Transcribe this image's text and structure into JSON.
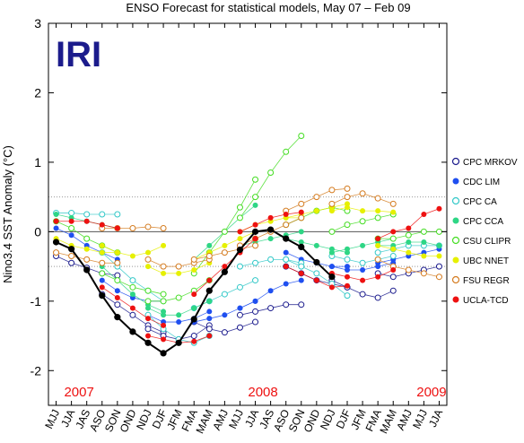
{
  "chart_data": {
    "type": "line",
    "title": "ENSO Forecast for statistical models, May 07 – Feb 09",
    "logo": "IRI",
    "ylabel": "Nino3.4 SST Anomaly (°C)",
    "xlabel": "",
    "ylim": [
      -2.5,
      3
    ],
    "yticks": [
      -2,
      -1,
      0,
      1,
      2,
      3
    ],
    "grid": "dotted lines at +0.5 and -0.5, solid line at 0",
    "legend_position": "right",
    "categories": [
      "MJJ",
      "JJA",
      "JAS",
      "ASO",
      "SON",
      "OND",
      "NDJ",
      "DJF",
      "JFM",
      "FMA",
      "MAM",
      "AMJ",
      "MJJ",
      "JJA",
      "JAS",
      "ASO",
      "SON",
      "OND",
      "NDJ",
      "DJF",
      "JFM",
      "FMA",
      "MAM",
      "AMJ",
      "MJJ",
      "JJA"
    ],
    "year_labels": [
      {
        "text": "2007",
        "at": 1.5
      },
      {
        "text": "2008",
        "at": 13.5
      },
      {
        "text": "2009",
        "at": 24.5
      }
    ],
    "observed": {
      "name": "Observed",
      "color": "#000000",
      "values": [
        -0.15,
        -0.25,
        -0.55,
        -0.92,
        -1.23,
        -1.44,
        -1.6,
        -1.75,
        -1.6,
        -1.26,
        -0.85,
        -0.58,
        -0.26,
        0.0,
        0.03,
        -0.1,
        -0.22,
        -0.44,
        -0.65
      ]
    },
    "series": [
      {
        "name": "CPC MRKOV",
        "color": "#1a1a8c",
        "marker": "open",
        "forecasts": [
          {
            "start": 0,
            "values": [
              -0.35,
              -0.45,
              -0.52,
              -0.6,
              -0.63
            ]
          },
          {
            "start": 3,
            "values": [
              -0.9,
              -1.05,
              -1.2,
              -1.35,
              -1.45
            ]
          },
          {
            "start": 6,
            "values": [
              -1.4,
              -1.5,
              -1.55,
              -1.5,
              -1.35
            ]
          },
          {
            "start": 9,
            "values": [
              -1.3,
              -1.4,
              -1.45,
              -1.38,
              -1.3
            ]
          },
          {
            "start": 12,
            "values": [
              -1.2,
              -1.15,
              -1.1,
              -1.05,
              -1.05
            ]
          },
          {
            "start": 15,
            "values": [
              -0.5,
              -0.6,
              -0.7,
              -0.75,
              -0.8
            ]
          },
          {
            "start": 18,
            "values": [
              -0.7,
              -0.8,
              -0.9,
              -0.95,
              -0.85
            ]
          },
          {
            "start": 21,
            "values": [
              -0.6,
              -0.65,
              -0.6,
              -0.55,
              -0.5
            ]
          }
        ]
      },
      {
        "name": "CDC LIM",
        "color": "#1f4ff0",
        "marker": "filled",
        "forecasts": [
          {
            "start": 0,
            "values": [
              0.05,
              -0.05,
              -0.2,
              -0.3,
              -0.4
            ]
          },
          {
            "start": 3,
            "values": [
              -0.7,
              -0.85,
              -0.95,
              -1.0,
              -1.0
            ]
          },
          {
            "start": 6,
            "values": [
              -1.2,
              -1.3,
              -1.3,
              -1.25,
              -1.15
            ]
          },
          {
            "start": 9,
            "values": [
              -1.3,
              -1.25,
              -1.2,
              -1.1,
              -1.0
            ]
          },
          {
            "start": 12,
            "values": [
              -1.1,
              -1.0,
              -0.85,
              -0.75,
              -0.7
            ]
          },
          {
            "start": 15,
            "values": [
              -0.3,
              -0.4,
              -0.45,
              -0.5,
              -0.5
            ]
          },
          {
            "start": 18,
            "values": [
              -0.5,
              -0.55,
              -0.55,
              -0.5,
              -0.45
            ]
          },
          {
            "start": 21,
            "values": [
              -0.45,
              -0.4,
              -0.35,
              -0.3,
              -0.25
            ]
          }
        ]
      },
      {
        "name": "CPC CA",
        "color": "#33c8c8",
        "marker": "open",
        "forecasts": [
          {
            "start": 0,
            "values": [
              0.27,
              0.27,
              0.25,
              0.25,
              0.25
            ]
          },
          {
            "start": 3,
            "values": [
              -0.3,
              -0.5,
              -0.7,
              -0.85,
              -1.0
            ]
          },
          {
            "start": 6,
            "values": [
              -1.2,
              -1.4,
              -1.55,
              -1.6,
              -1.5
            ]
          },
          {
            "start": 9,
            "values": [
              -1.1,
              -1.0,
              -0.9,
              -0.8,
              -0.7
            ]
          },
          {
            "start": 12,
            "values": [
              -0.5,
              -0.45,
              -0.4,
              -0.4,
              -0.45
            ]
          },
          {
            "start": 15,
            "values": [
              -0.4,
              -0.5,
              -0.6,
              -0.75,
              -0.92
            ]
          },
          {
            "start": 18,
            "values": [
              -0.35,
              -0.4,
              -0.45,
              -0.4,
              -0.35
            ]
          },
          {
            "start": 21,
            "values": [
              -0.3,
              -0.25,
              -0.2,
              -0.2,
              -0.2
            ]
          }
        ]
      },
      {
        "name": "CPC CCA",
        "color": "#2ed685",
        "marker": "filled",
        "forecasts": [
          {
            "start": 0,
            "values": [
              0.25,
              0.2,
              0.15,
              0.1,
              0.05
            ]
          },
          {
            "start": 3,
            "values": [
              -0.5,
              -0.7,
              -0.9,
              -1.05,
              -1.15
            ]
          },
          {
            "start": 6,
            "values": [
              -1.1,
              -1.2,
              -1.2,
              -1.1,
              -1.0
            ]
          },
          {
            "start": 9,
            "values": [
              -0.4,
              -0.2,
              0.0,
              0.2,
              0.38
            ]
          },
          {
            "start": 12,
            "values": [
              -0.2,
              -0.15,
              -0.1,
              -0.05,
              0.0
            ]
          },
          {
            "start": 15,
            "values": [
              -0.1,
              -0.15,
              -0.2,
              -0.25,
              -0.3
            ]
          },
          {
            "start": 18,
            "values": [
              -0.3,
              -0.25,
              -0.2,
              -0.15,
              -0.1
            ]
          },
          {
            "start": 21,
            "values": [
              -0.2,
              -0.2,
              -0.15,
              -0.15,
              -0.2
            ]
          }
        ]
      },
      {
        "name": "CSU CLIPR",
        "color": "#44dd22",
        "marker": "open",
        "forecasts": [
          {
            "start": 0,
            "values": [
              0.15,
              0.05,
              -0.1,
              -0.2,
              -0.3
            ]
          },
          {
            "start": 3,
            "values": [
              -0.6,
              -0.7,
              -0.8,
              -0.85,
              -0.9
            ]
          },
          {
            "start": 6,
            "values": [
              -1.0,
              -1.0,
              -0.95,
              -0.85,
              -0.7
            ]
          },
          {
            "start": 9,
            "values": [
              -0.6,
              -0.3,
              0.0,
              0.35,
              0.75
            ]
          },
          {
            "start": 12,
            "values": [
              0.2,
              0.5,
              0.85,
              1.15,
              1.38
            ]
          },
          {
            "start": 15,
            "values": [
              0.1,
              0.2,
              0.3,
              0.35,
              0.3
            ]
          },
          {
            "start": 18,
            "values": [
              0.0,
              0.1,
              0.15,
              0.2,
              0.25
            ]
          },
          {
            "start": 21,
            "values": [
              -0.1,
              -0.1,
              -0.05,
              0.0,
              0.0
            ]
          }
        ]
      },
      {
        "name": "UBC NNET",
        "color": "#e6f000",
        "marker": "filled",
        "forecasts": [
          {
            "start": 0,
            "values": [
              -0.1,
              -0.2,
              -0.25,
              -0.3,
              -0.3
            ]
          },
          {
            "start": 3,
            "values": [
              -0.2,
              -0.3,
              -0.35,
              -0.3,
              -0.2
            ]
          },
          {
            "start": 6,
            "values": [
              -0.5,
              -0.6,
              -0.6,
              -0.55,
              -0.45
            ]
          },
          {
            "start": 9,
            "values": [
              -0.4,
              -0.3,
              -0.2,
              -0.1,
              0.0
            ]
          },
          {
            "start": 12,
            "values": [
              0.0,
              0.1,
              0.15,
              0.2,
              0.2
            ]
          },
          {
            "start": 15,
            "values": [
              0.2,
              0.25,
              0.3,
              0.35,
              0.4
            ]
          },
          {
            "start": 18,
            "values": [
              0.3,
              0.35,
              0.3,
              0.3,
              0.28
            ]
          },
          {
            "start": 21,
            "values": [
              -0.2,
              -0.25,
              -0.3,
              -0.35,
              -0.35
            ]
          }
        ]
      },
      {
        "name": "FSU REGR",
        "color": "#d47b1f",
        "marker": "open",
        "forecasts": [
          {
            "start": 0,
            "values": [
              -0.3,
              -0.35,
              -0.4,
              -0.45,
              -0.45
            ]
          },
          {
            "start": 3,
            "values": [
              0.05,
              0.05,
              0.05,
              0.07,
              0.05
            ]
          },
          {
            "start": 6,
            "values": [
              -0.4,
              -0.5,
              -0.5,
              -0.45,
              -0.4
            ]
          },
          {
            "start": 9,
            "values": [
              -0.4,
              -0.35,
              -0.3,
              -0.25,
              -0.2
            ]
          },
          {
            "start": 12,
            "values": [
              -0.2,
              -0.1,
              0.0,
              0.1,
              0.2
            ]
          },
          {
            "start": 15,
            "values": [
              0.3,
              0.4,
              0.5,
              0.6,
              0.62
            ]
          },
          {
            "start": 18,
            "values": [
              0.4,
              0.5,
              0.55,
              0.48,
              0.4
            ]
          },
          {
            "start": 21,
            "values": [
              -0.4,
              -0.5,
              -0.55,
              -0.6,
              -0.65
            ]
          }
        ]
      },
      {
        "name": "UCLA-TCD",
        "color": "#ee1111",
        "marker": "filled",
        "forecasts": [
          {
            "start": 0,
            "values": [
              0.15,
              0.15,
              0.15,
              0.1,
              0.05
            ]
          },
          {
            "start": 3,
            "values": [
              -0.8,
              -0.95,
              -1.1,
              -1.25,
              -1.35
            ]
          },
          {
            "start": 6,
            "values": [
              -1.5,
              -1.55,
              -1.6,
              -1.58,
              -1.5
            ]
          },
          {
            "start": 9,
            "values": [
              -0.9,
              -0.7,
              -0.5,
              -0.3,
              -0.1
            ]
          },
          {
            "start": 12,
            "values": [
              0.0,
              0.1,
              0.2,
              0.25,
              0.28
            ]
          },
          {
            "start": 15,
            "values": [
              -0.5,
              -0.6,
              -0.7,
              -0.8,
              -0.78
            ]
          },
          {
            "start": 18,
            "values": [
              -0.6,
              -0.65,
              -0.7,
              -0.65,
              -0.55
            ]
          },
          {
            "start": 21,
            "values": [
              -0.1,
              0.0,
              0.05,
              0.25,
              0.33
            ]
          }
        ]
      }
    ]
  }
}
